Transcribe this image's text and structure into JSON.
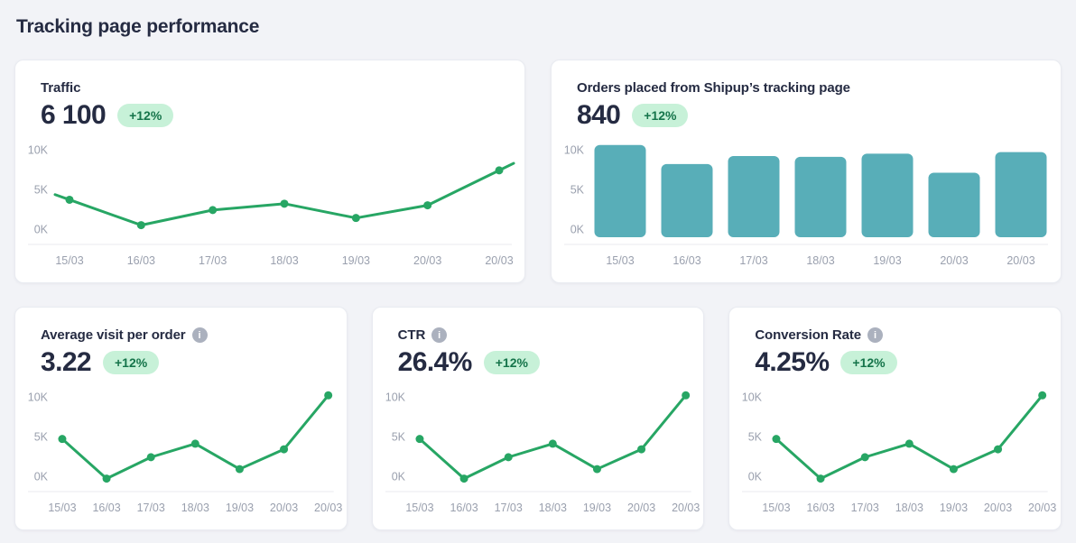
{
  "page_title": "Tracking page performance",
  "colors": {
    "page_bg": "#F2F3F7",
    "card_bg": "#FFFFFF",
    "card_border": "#E9EBF1",
    "title_text": "#252B42",
    "axis_text": "#9AA0AE",
    "separator": "#E8EAEF",
    "line_green": "#27A664",
    "bar_teal": "#58AEB8",
    "badge_bg": "#C7F1D8",
    "badge_text": "#15744A",
    "info_icon": "#ABB1BE"
  },
  "cards": [
    {
      "title": "Traffic",
      "value": "6 100",
      "badge": "+12%"
    },
    {
      "title": "Orders placed from Shipup’s tracking page",
      "value": "840",
      "badge": "+12%"
    },
    {
      "title": "Average visit per order",
      "value": "3.22",
      "badge": "+12%"
    },
    {
      "title": "CTR",
      "value": "26.4%",
      "badge": "+12%"
    },
    {
      "title": "Conversion Rate",
      "value": "4.25%",
      "badge": "+12%"
    }
  ],
  "chart_data": [
    {
      "type": "line",
      "title": "Traffic",
      "categories": [
        "15/03",
        "16/03",
        "17/03",
        "18/03",
        "19/03",
        "20/03",
        "20/03"
      ],
      "values": [
        3.7,
        0.5,
        2.4,
        3.2,
        1.4,
        3.0,
        7.4
      ],
      "unit": "thousands",
      "ylim": [
        0,
        10
      ],
      "yticks": [
        {
          "label": "0K",
          "value": 0
        },
        {
          "label": "5K",
          "value": 5
        },
        {
          "label": "10K",
          "value": 10
        }
      ],
      "grid": false,
      "legend": false,
      "line_extends_to_edges": true
    },
    {
      "type": "bar",
      "title": "Orders placed from Shipup’s tracking page",
      "categories": [
        "15/03",
        "16/03",
        "17/03",
        "18/03",
        "19/03",
        "20/03",
        "20/03"
      ],
      "values": [
        10.6,
        8.2,
        9.2,
        9.1,
        9.5,
        7.1,
        9.7
      ],
      "unit": "thousands",
      "ylim": [
        0,
        10
      ],
      "yticks": [
        {
          "label": "0K",
          "value": 0
        },
        {
          "label": "5K",
          "value": 5
        },
        {
          "label": "10K",
          "value": 10
        }
      ],
      "grid": false,
      "legend": false
    },
    {
      "type": "line",
      "title": "Average visit per order",
      "categories": [
        "15/03",
        "16/03",
        "17/03",
        "18/03",
        "19/03",
        "20/03",
        "20/03"
      ],
      "values": [
        4.7,
        -0.3,
        2.4,
        4.1,
        0.9,
        3.4,
        10.2
      ],
      "unit": "thousands",
      "ylim": [
        0,
        10
      ],
      "yticks": [
        {
          "label": "0K",
          "value": 0
        },
        {
          "label": "5K",
          "value": 5
        },
        {
          "label": "10K",
          "value": 10
        }
      ],
      "grid": false,
      "legend": false,
      "line_extends_to_edges": false
    },
    {
      "type": "line",
      "title": "CTR",
      "categories": [
        "15/03",
        "16/03",
        "17/03",
        "18/03",
        "19/03",
        "20/03",
        "20/03"
      ],
      "values": [
        4.7,
        -0.3,
        2.4,
        4.1,
        0.9,
        3.4,
        10.2
      ],
      "unit": "thousands",
      "ylim": [
        0,
        10
      ],
      "yticks": [
        {
          "label": "0K",
          "value": 0
        },
        {
          "label": "5K",
          "value": 5
        },
        {
          "label": "10K",
          "value": 10
        }
      ],
      "grid": false,
      "legend": false,
      "line_extends_to_edges": false
    },
    {
      "type": "line",
      "title": "Conversion Rate",
      "categories": [
        "15/03",
        "16/03",
        "17/03",
        "18/03",
        "19/03",
        "20/03",
        "20/03"
      ],
      "values": [
        4.7,
        -0.3,
        2.4,
        4.1,
        0.9,
        3.4,
        10.2
      ],
      "unit": "thousands",
      "ylim": [
        0,
        10
      ],
      "yticks": [
        {
          "label": "0K",
          "value": 0
        },
        {
          "label": "5K",
          "value": 5
        },
        {
          "label": "10K",
          "value": 10
        }
      ],
      "grid": false,
      "legend": false,
      "line_extends_to_edges": false
    }
  ]
}
